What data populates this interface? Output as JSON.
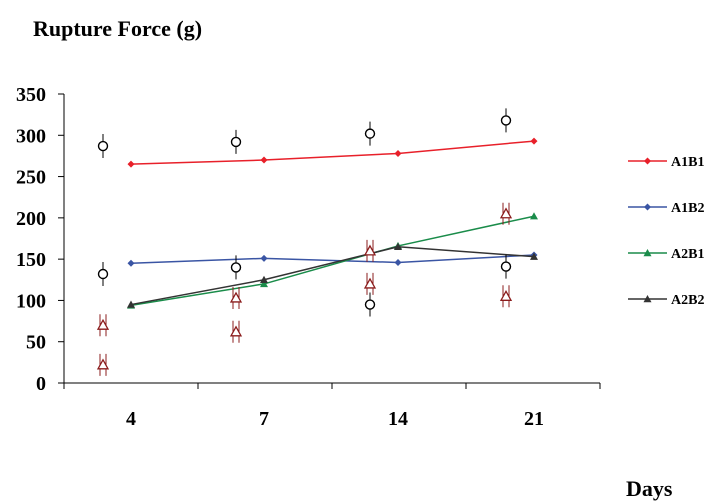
{
  "chart_data": {
    "type": "line",
    "title": "Rupture Force (g)",
    "xlabel": "Days",
    "ylabel": "",
    "categories": [
      "4",
      "7",
      "14",
      "21"
    ],
    "ylim": [
      0,
      350
    ],
    "yticks": [
      "0",
      "50",
      "100",
      "150",
      "200",
      "250",
      "300",
      "350"
    ],
    "legend_position": "right",
    "grid": false,
    "series": [
      {
        "name": "A1B1",
        "color": "#e8202a",
        "marker": "diamond",
        "values": [
          265,
          270,
          278,
          293
        ]
      },
      {
        "name": "A1B2",
        "color": "#3a55a4",
        "marker": "diamond",
        "values": [
          145,
          151,
          146,
          155
        ]
      },
      {
        "name": "A2B1",
        "color": "#1a8c4a",
        "marker": "triangle",
        "values": [
          94,
          120,
          166,
          202
        ]
      },
      {
        "name": "A2B2",
        "color": "#333333",
        "marker": "triangle",
        "values": [
          95,
          125,
          165,
          153
        ]
      }
    ],
    "annotations": {
      "black_circles": [
        {
          "category": "4",
          "y": 287
        },
        {
          "category": "4",
          "y": 132
        },
        {
          "category": "7",
          "y": 292
        },
        {
          "category": "7",
          "y": 140
        },
        {
          "category": "14",
          "y": 302
        },
        {
          "category": "14",
          "y": 95
        },
        {
          "category": "21",
          "y": 318
        },
        {
          "category": "21",
          "y": 141
        }
      ],
      "red_triangles": [
        {
          "category": "4",
          "y": 70
        },
        {
          "category": "4",
          "y": 22
        },
        {
          "category": "7",
          "y": 103
        },
        {
          "category": "7",
          "y": 62
        },
        {
          "category": "14",
          "y": 160
        },
        {
          "category": "14",
          "y": 120
        },
        {
          "category": "21",
          "y": 205
        },
        {
          "category": "21",
          "y": 105
        }
      ]
    }
  }
}
